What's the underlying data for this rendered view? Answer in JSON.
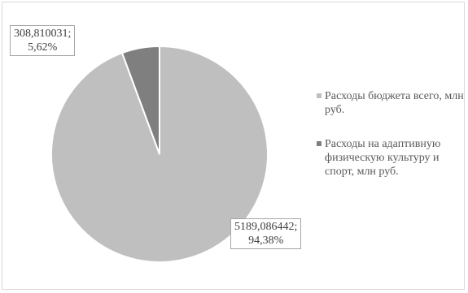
{
  "chart_data": {
    "type": "pie",
    "title": "",
    "legend_position": "right",
    "slices": [
      {
        "name": "Расходы бюджета всего, млн руб.",
        "value": 5189.086442,
        "value_label": "5189,086442;",
        "percent_label": "94,38%",
        "color": "#bfbfbf"
      },
      {
        "name": "Расходы на адаптивную физическую культуру и спорт, млн руб.",
        "value": 308.810031,
        "value_label": "308,810031;",
        "percent_label": "5,62%",
        "color": "#7f7f7f"
      }
    ],
    "slice_border_color": "#ffffff"
  }
}
